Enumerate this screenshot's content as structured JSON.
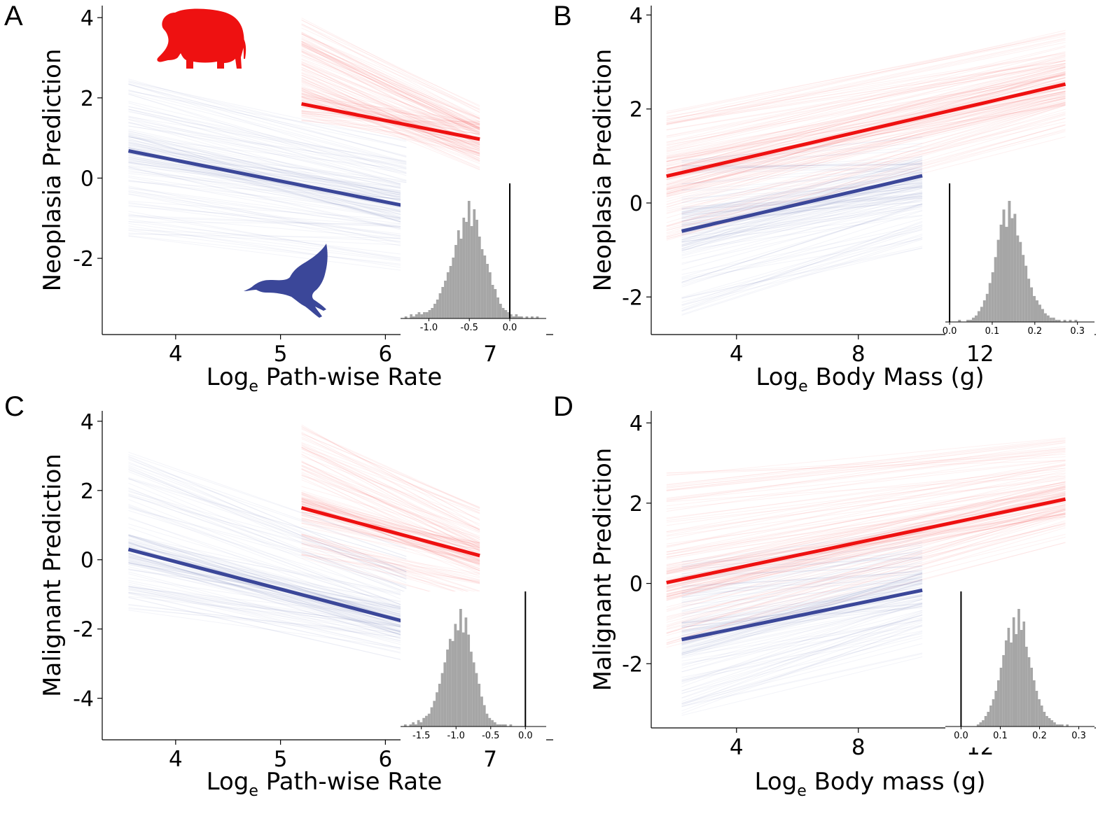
{
  "figure": {
    "colors": {
      "mammal": "#ee1111",
      "bird": "#3b4799",
      "mammal_band": "#f3a0a0",
      "bird_band": "#aab0cc",
      "histogram": "#a6a6a6",
      "axis": "#000000"
    },
    "icons": {
      "mammal": "elephant-icon",
      "bird": "duck-icon"
    }
  },
  "chart_data": [
    {
      "panel": "A",
      "type": "line",
      "xlabel": "Loge Path-wise Rate",
      "xlabel_base": "Log",
      "xlabel_sub": "e",
      "xlabel_rest": " Path-wise Rate",
      "ylabel": "Neoplasia Prediction",
      "xlim": [
        3.3,
        7.6
      ],
      "ylim": [
        -3.9,
        4.3
      ],
      "xticks": [
        4,
        5,
        6,
        7
      ],
      "yticks": [
        -2,
        0,
        2,
        4
      ],
      "series": [
        {
          "name": "mammals",
          "x": [
            5.2,
            6.9
          ],
          "y": [
            1.85,
            0.97
          ],
          "band_start": [
            2.0,
            4.0
          ],
          "band_end": [
            0.0,
            2.0
          ]
        },
        {
          "name": "birds",
          "x": [
            3.55,
            6.2
          ],
          "y": [
            0.68,
            -0.7
          ],
          "band_start": [
            -1.5,
            2.5
          ],
          "band_end": [
            -2.5,
            1.2
          ]
        }
      ],
      "inset": {
        "type": "histogram",
        "xlim": [
          -1.35,
          0.45
        ],
        "xticks": [
          -1.0,
          -0.5,
          0.0
        ],
        "xtick_labels": [
          "-1.0",
          "-0.5",
          "0.0"
        ],
        "vline": 0.0,
        "bins_start": -1.3,
        "bin_width": 0.0325,
        "counts": [
          1,
          0,
          2,
          1,
          2,
          3,
          2,
          3,
          3,
          4,
          5,
          7,
          9,
          12,
          15,
          18,
          22,
          25,
          29,
          35,
          42,
          38,
          48,
          46,
          56,
          44,
          52,
          47,
          39,
          33,
          30,
          26,
          22,
          16,
          14,
          10,
          7,
          5,
          4,
          3,
          2,
          1,
          2,
          1,
          1,
          0,
          1,
          0,
          1,
          0,
          1
        ]
      }
    },
    {
      "panel": "B",
      "type": "line",
      "xlabel": "Loge Body Mass (g)",
      "xlabel_base": "Log",
      "xlabel_sub": "e",
      "xlabel_rest": " Body Mass (g)",
      "ylabel": "Neoplasia Prediction",
      "xlim": [
        1.2,
        15.8
      ],
      "ylim": [
        -2.8,
        4.2
      ],
      "xticks": [
        4,
        8,
        12
      ],
      "yticks": [
        -2,
        0,
        2,
        4
      ],
      "series": [
        {
          "name": "mammals",
          "x": [
            1.7,
            14.8
          ],
          "y": [
            0.57,
            2.53
          ],
          "band_start": [
            -0.8,
            2.0
          ],
          "band_end": [
            1.3,
            3.9
          ]
        },
        {
          "name": "birds",
          "x": [
            2.2,
            10.1
          ],
          "y": [
            -0.6,
            0.58
          ],
          "band_start": [
            -2.4,
            1.0
          ],
          "band_end": [
            -1.2,
            1.5
          ]
        }
      ],
      "inset": {
        "type": "histogram",
        "xlim": [
          -0.01,
          0.34
        ],
        "xticks": [
          0.0,
          0.1,
          0.2,
          0.3
        ],
        "xtick_labels": [
          "0.0",
          "0.1",
          "0.2",
          "0.3"
        ],
        "vline": 0.0,
        "bins_start": 0.02,
        "bin_width": 0.0065,
        "counts": [
          1,
          0,
          0,
          1,
          1,
          2,
          3,
          5,
          7,
          10,
          13,
          18,
          23,
          30,
          38,
          45,
          52,
          44,
          56,
          48,
          50,
          40,
          37,
          31,
          26,
          20,
          16,
          12,
          10,
          8,
          6,
          4,
          3,
          2,
          2,
          1,
          1,
          0,
          1,
          0,
          1,
          0,
          1
        ]
      }
    },
    {
      "panel": "C",
      "type": "line",
      "xlabel": "Loge Path-wise Rate",
      "xlabel_base": "Log",
      "xlabel_sub": "e",
      "xlabel_rest": " Path-wise Rate",
      "ylabel": "Malignant Prediction",
      "xlim": [
        3.3,
        7.6
      ],
      "ylim": [
        -5.2,
        4.3
      ],
      "xticks": [
        4,
        5,
        6,
        7
      ],
      "yticks": [
        -4,
        -2,
        0,
        2,
        4
      ],
      "series": [
        {
          "name": "mammals",
          "x": [
            5.2,
            6.9
          ],
          "y": [
            1.5,
            0.12
          ],
          "band_start": [
            0.0,
            3.9
          ],
          "band_end": [
            -1.5,
            1.8
          ]
        },
        {
          "name": "birds",
          "x": [
            3.55,
            6.2
          ],
          "y": [
            0.3,
            -1.8
          ],
          "band_start": [
            -1.6,
            3.2
          ],
          "band_end": [
            -3.2,
            0.5
          ]
        }
      ],
      "inset": {
        "type": "histogram",
        "xlim": [
          -1.8,
          0.3
        ],
        "xticks": [
          -1.5,
          -1.0,
          -0.5,
          0.0
        ],
        "xtick_labels": [
          "-1.5",
          "-1.0",
          "-0.5",
          "0.0"
        ],
        "vline": 0.0,
        "bins_start": -1.75,
        "bin_width": 0.038,
        "counts": [
          1,
          0,
          1,
          2,
          1,
          3,
          2,
          4,
          5,
          6,
          9,
          12,
          16,
          20,
          25,
          30,
          36,
          41,
          40,
          48,
          45,
          55,
          44,
          51,
          43,
          35,
          30,
          25,
          20,
          14,
          10,
          6,
          4,
          3,
          2,
          1,
          1,
          1,
          1,
          0,
          1
        ]
      }
    },
    {
      "panel": "D",
      "type": "line",
      "xlabel": "Loge Body mass (g)",
      "xlabel_base": "Log",
      "xlabel_sub": "e",
      "xlabel_rest": " Body mass (g)",
      "ylabel": "Malignant Prediction",
      "xlim": [
        1.2,
        15.8
      ],
      "ylim": [
        -3.6,
        4.3
      ],
      "xticks": [
        4,
        8,
        12
      ],
      "yticks": [
        -2,
        0,
        2,
        4
      ],
      "series": [
        {
          "name": "mammals",
          "x": [
            1.7,
            14.8
          ],
          "y": [
            0.02,
            2.1
          ],
          "band_start": [
            -1.6,
            2.8
          ],
          "band_end": [
            0.9,
            3.9
          ]
        },
        {
          "name": "birds",
          "x": [
            2.2,
            10.1
          ],
          "y": [
            -1.4,
            -0.17
          ],
          "band_start": [
            -3.3,
            0.6
          ],
          "band_end": [
            -1.9,
            1.6
          ]
        }
      ],
      "inset": {
        "type": "histogram",
        "xlim": [
          -0.04,
          0.34
        ],
        "xticks": [
          0.0,
          0.1,
          0.2,
          0.3
        ],
        "xtick_labels": [
          "0.0",
          "0.1",
          "0.2",
          "0.3"
        ],
        "vline": 0.0,
        "bins_start": 0.04,
        "bin_width": 0.0065,
        "counts": [
          1,
          2,
          3,
          5,
          7,
          10,
          13,
          17,
          22,
          28,
          34,
          41,
          47,
          40,
          52,
          44,
          56,
          46,
          50,
          38,
          33,
          28,
          22,
          17,
          13,
          10,
          7,
          5,
          4,
          3,
          2,
          1,
          1,
          1,
          0,
          1
        ]
      }
    }
  ]
}
